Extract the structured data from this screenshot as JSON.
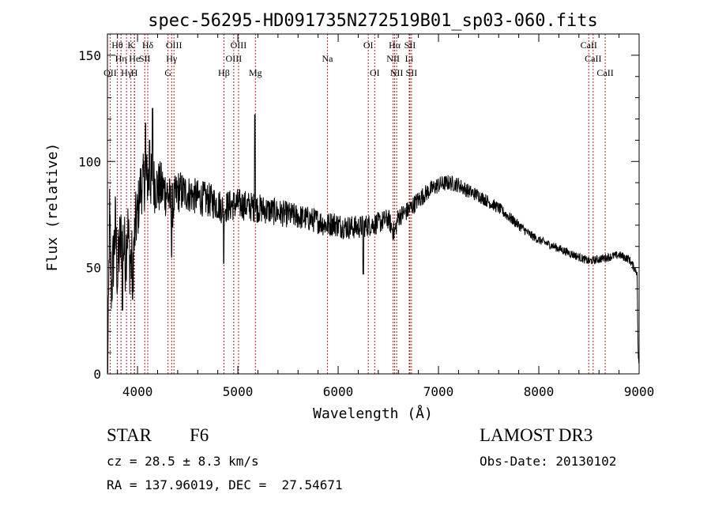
{
  "chart_data": {
    "type": "line",
    "title": "spec-56295-HD091735N272519B01_sp03-060.fits",
    "xlabel": "Wavelength (Å)",
    "ylabel": "Flux (relative)",
    "xlim": [
      3700,
      9000
    ],
    "ylim": [
      0,
      160
    ],
    "x_ticks": [
      4000,
      5000,
      6000,
      7000,
      8000,
      9000
    ],
    "y_ticks": [
      0,
      50,
      100,
      150
    ],
    "x_tick_labels": [
      "4000",
      "5000",
      "6000",
      "7000",
      "8000",
      "9000"
    ],
    "y_tick_labels": [
      "0",
      "50",
      "100",
      "150"
    ],
    "grid": false,
    "series": [
      {
        "name": "flux",
        "anchors": [
          [
            3700,
            2
          ],
          [
            3710,
            20
          ],
          [
            3720,
            75
          ],
          [
            3740,
            40
          ],
          [
            3760,
            55
          ],
          [
            3780,
            70
          ],
          [
            3800,
            45
          ],
          [
            3820,
            60
          ],
          [
            3850,
            65
          ],
          [
            3880,
            55
          ],
          [
            3900,
            70
          ],
          [
            3920,
            55
          ],
          [
            3950,
            50
          ],
          [
            3980,
            70
          ],
          [
            4000,
            75
          ],
          [
            4030,
            88
          ],
          [
            4060,
            90
          ],
          [
            4100,
            92
          ],
          [
            4150,
            90
          ],
          [
            4200,
            88
          ],
          [
            4250,
            87
          ],
          [
            4300,
            85
          ],
          [
            4340,
            78
          ],
          [
            4400,
            86
          ],
          [
            4500,
            85
          ],
          [
            4600,
            83
          ],
          [
            4700,
            82
          ],
          [
            4800,
            80
          ],
          [
            4850,
            78
          ],
          [
            4900,
            79
          ],
          [
            5000,
            80
          ],
          [
            5100,
            79
          ],
          [
            5200,
            78
          ],
          [
            5300,
            77
          ],
          [
            5400,
            76
          ],
          [
            5500,
            75
          ],
          [
            5600,
            74
          ],
          [
            5700,
            73
          ],
          [
            5800,
            72
          ],
          [
            5890,
            70
          ],
          [
            5950,
            71
          ],
          [
            6000,
            70
          ],
          [
            6100,
            69
          ],
          [
            6200,
            69
          ],
          [
            6300,
            70
          ],
          [
            6400,
            71
          ],
          [
            6500,
            73
          ],
          [
            6560,
            66
          ],
          [
            6600,
            74
          ],
          [
            6700,
            77
          ],
          [
            6800,
            82
          ],
          [
            6900,
            86
          ],
          [
            7000,
            89
          ],
          [
            7100,
            90
          ],
          [
            7200,
            89
          ],
          [
            7300,
            86
          ],
          [
            7400,
            84
          ],
          [
            7500,
            81
          ],
          [
            7600,
            78
          ],
          [
            7700,
            74
          ],
          [
            7800,
            70
          ],
          [
            7900,
            66
          ],
          [
            8000,
            63
          ],
          [
            8100,
            61
          ],
          [
            8200,
            59
          ],
          [
            8300,
            57
          ],
          [
            8400,
            55
          ],
          [
            8500,
            53
          ],
          [
            8600,
            54
          ],
          [
            8700,
            55
          ],
          [
            8800,
            56
          ],
          [
            8900,
            54
          ],
          [
            8950,
            50
          ],
          [
            8980,
            48
          ],
          [
            8990,
            10
          ],
          [
            9000,
            2
          ]
        ],
        "noise_level": [
          [
            3700,
            18
          ],
          [
            3950,
            18
          ],
          [
            4000,
            14
          ],
          [
            4150,
            14
          ],
          [
            4300,
            12
          ],
          [
            4500,
            9
          ],
          [
            4800,
            8
          ],
          [
            5200,
            7
          ],
          [
            5600,
            6
          ],
          [
            6000,
            6
          ],
          [
            6500,
            5
          ],
          [
            7000,
            4
          ],
          [
            8000,
            2
          ],
          [
            9000,
            2
          ]
        ],
        "spikes": [
          [
            4150,
            125
          ],
          [
            4080,
            118
          ],
          [
            4120,
            110
          ],
          [
            4340,
            55
          ],
          [
            4860,
            52
          ],
          [
            5170,
            122
          ],
          [
            3950,
            35
          ],
          [
            3850,
            30
          ],
          [
            6250,
            47
          ]
        ],
        "color": "#000000"
      }
    ],
    "lines": [
      {
        "name": "OII",
        "wavelength": 3727,
        "row": 2
      },
      {
        "name": "Hθ",
        "wavelength": 3798,
        "row": 0
      },
      {
        "name": "Hη",
        "wavelength": 3835,
        "row": 1
      },
      {
        "name": "Hγ",
        "wavelength": 3890,
        "row": 2
      },
      {
        "name": "K",
        "wavelength": 3934,
        "row": 0
      },
      {
        "name": "He",
        "wavelength": 3970,
        "row": 1
      },
      {
        "name": "H",
        "wavelength": 3968,
        "row": 2
      },
      {
        "name": "SII",
        "wavelength": 4072,
        "row": 1
      },
      {
        "name": "Hδ",
        "wavelength": 4102,
        "row": 0
      },
      {
        "name": "OIII",
        "wavelength": 4363,
        "row": 0
      },
      {
        "name": "Hγ",
        "wavelength": 4340,
        "row": 1
      },
      {
        "name": "G",
        "wavelength": 4304,
        "row": 2
      },
      {
        "name": "Hβ",
        "wavelength": 4861,
        "row": 2
      },
      {
        "name": "OIII",
        "wavelength": 5007,
        "row": 0
      },
      {
        "name": "OIII",
        "wavelength": 4959,
        "row": 1
      },
      {
        "name": "Mg",
        "wavelength": 5175,
        "row": 2
      },
      {
        "name": "Na",
        "wavelength": 5893,
        "row": 1
      },
      {
        "name": "OI",
        "wavelength": 6300,
        "row": 0
      },
      {
        "name": "OI",
        "wavelength": 6364,
        "row": 2
      },
      {
        "name": "Hα",
        "wavelength": 6563,
        "row": 0
      },
      {
        "name": "NII",
        "wavelength": 6548,
        "row": 1
      },
      {
        "name": "NII",
        "wavelength": 6583,
        "row": 2
      },
      {
        "name": "SII",
        "wavelength": 6716,
        "row": 0
      },
      {
        "name": "Li",
        "wavelength": 6708,
        "row": 1
      },
      {
        "name": "SII",
        "wavelength": 6731,
        "row": 2
      },
      {
        "name": "CaII",
        "wavelength": 8498,
        "row": 0
      },
      {
        "name": "CaII",
        "wavelength": 8542,
        "row": 1
      },
      {
        "name": "CaII",
        "wavelength": 8662,
        "row": 2
      }
    ]
  },
  "info": {
    "object_class": "STAR",
    "subclass": "F6",
    "survey": "LAMOST DR3",
    "redshift": "cz = 28.5 ± 8.3 km/s",
    "obs_date": "Obs-Date: 20130102",
    "coords": "RA = 137.96019, DEC =  27.54671"
  }
}
